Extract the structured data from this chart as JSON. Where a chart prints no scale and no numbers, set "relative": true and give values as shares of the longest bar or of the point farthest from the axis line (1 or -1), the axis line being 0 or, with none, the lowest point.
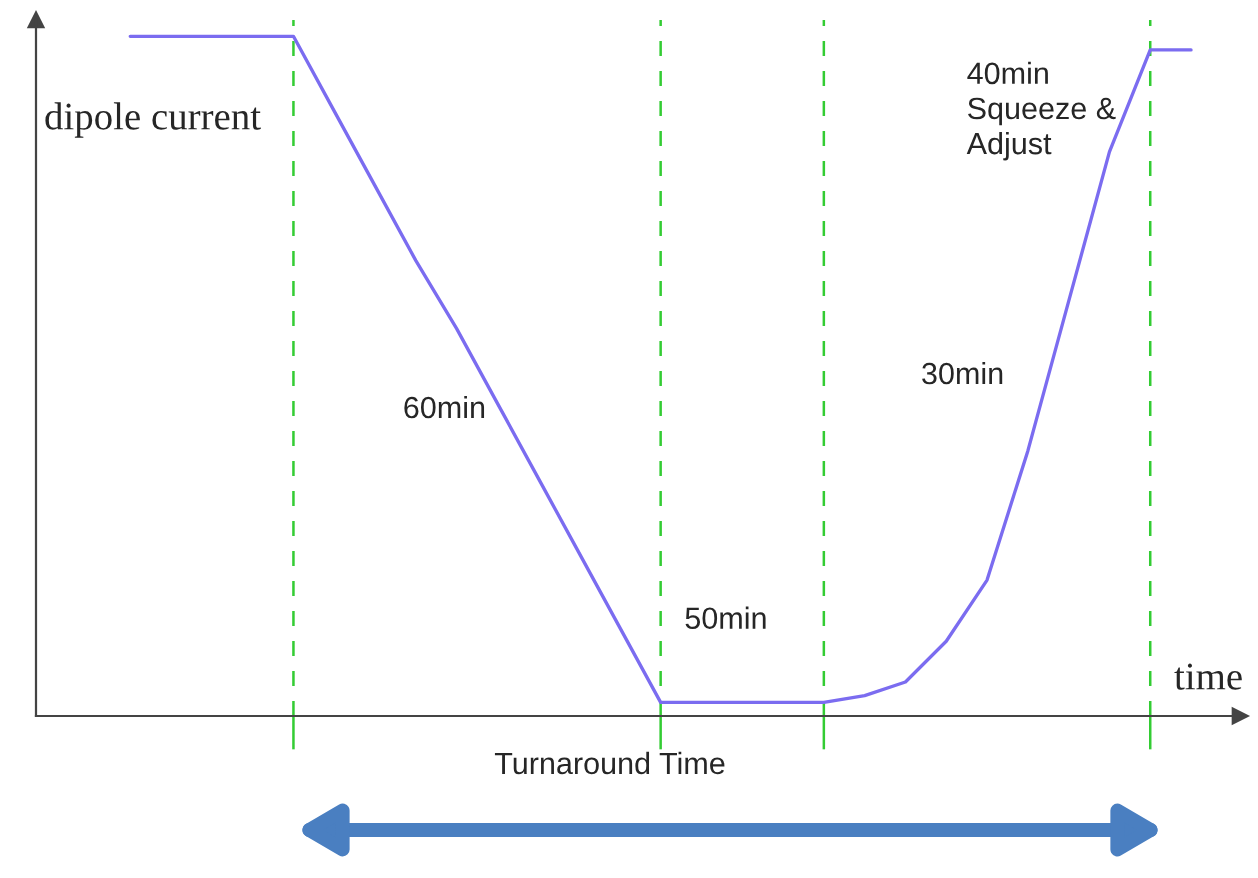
{
  "chart_data": {
    "type": "line",
    "relative": true,
    "ylabel": "dipole current",
    "xlabel": "time",
    "categories": [
      null,
      null,
      null,
      null,
      null,
      null,
      null,
      null,
      null,
      null,
      null,
      null,
      null,
      null,
      null,
      null,
      null,
      null,
      null,
      null,
      null,
      null,
      null,
      null,
      null,
      null,
      null
    ],
    "series": [
      {
        "color": "#7b6cf0",
        "values": [
          1,
          1,
          1,
          1,
          1,
          0.89,
          0.78,
          0.67,
          0.57,
          0.46,
          0.35,
          0.24,
          0.13,
          0.02,
          0.02,
          0.02,
          0.02,
          0.02,
          0.03,
          0.05,
          0.11,
          0.2,
          0.39,
          0.61,
          0.83,
          0.98,
          0.98
        ]
      }
    ],
    "annotations": [
      "60min",
      "50min",
      "30min",
      "40min\nSqueeze &\nAdjust",
      "Turnaround Time"
    ],
    "grid": "x"
  }
}
